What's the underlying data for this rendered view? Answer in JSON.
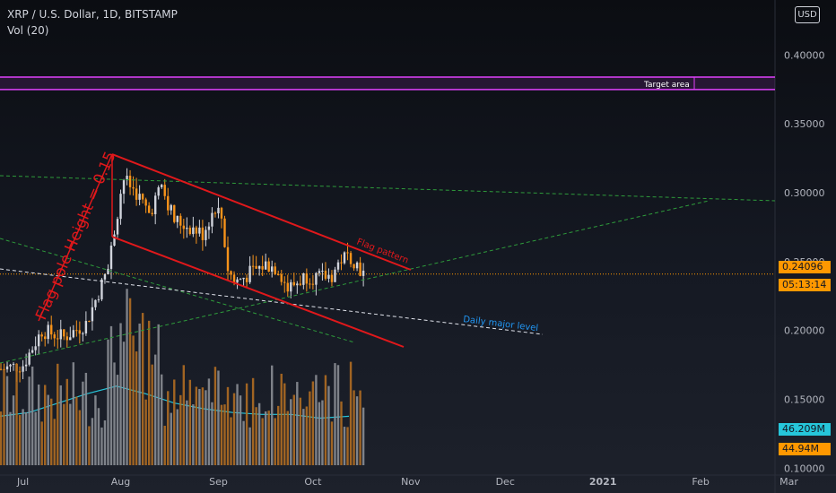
{
  "header": {
    "symbol_line": "XRP / U.S. Dollar, 1D, BITSTAMP",
    "indicator_line": "Vol (20)"
  },
  "currency_button": "USD",
  "price_axis": {
    "ticks": [
      "0.40000",
      "0.35000",
      "0.30000",
      "0.25000",
      "0.20000",
      "0.15000",
      "0.10000"
    ]
  },
  "time_axis": {
    "ticks": [
      "Jul",
      "Aug",
      "Sep",
      "Oct",
      "Nov",
      "Dec",
      "2021",
      "Feb",
      "Mar"
    ]
  },
  "badges": {
    "last_price": "0.24096",
    "countdown": "05:13:14",
    "vol_ma": "46.209M",
    "volume": "44.94M"
  },
  "annotations": {
    "target_area": "Target area",
    "flag_pattern": "Flag pattern",
    "flag_pole": "Flag pole Height = 0.15",
    "daily_level": "Daily major level"
  },
  "colors": {
    "up": "#d1d4dc",
    "down": "#f7931a",
    "vol_ma": "#26c6da",
    "flag_lines": "#e0181b",
    "target": "#e040fb",
    "trend_green": "#2e9b3b",
    "last_price_line": "#ff9800",
    "daily_level": "#2196f3"
  },
  "chart_data": {
    "type": "candlestick",
    "interval": "1D",
    "y_range": [
      0.095,
      0.425
    ],
    "last_price": 0.24096,
    "target_area": [
      0.375,
      0.384
    ],
    "keypoints": [
      {
        "date": "2020-06-24",
        "close": 0.172
      },
      {
        "date": "2020-07-01",
        "close": 0.175
      },
      {
        "date": "2020-07-07",
        "close": 0.2
      },
      {
        "date": "2020-07-14",
        "close": 0.195
      },
      {
        "date": "2020-07-21",
        "close": 0.205
      },
      {
        "date": "2020-07-28",
        "close": 0.245
      },
      {
        "date": "2020-08-01",
        "close": 0.3
      },
      {
        "date": "2020-08-02",
        "close": 0.31
      },
      {
        "date": "2020-08-06",
        "close": 0.3
      },
      {
        "date": "2020-08-10",
        "close": 0.285
      },
      {
        "date": "2020-08-14",
        "close": 0.305
      },
      {
        "date": "2020-08-18",
        "close": 0.28
      },
      {
        "date": "2020-08-23",
        "close": 0.275
      },
      {
        "date": "2020-08-27",
        "close": 0.27
      },
      {
        "date": "2020-08-31",
        "close": 0.29
      },
      {
        "date": "2020-09-02",
        "close": 0.282
      },
      {
        "date": "2020-09-04",
        "close": 0.245
      },
      {
        "date": "2020-09-06",
        "close": 0.235
      },
      {
        "date": "2020-09-10",
        "close": 0.24
      },
      {
        "date": "2020-09-16",
        "close": 0.248
      },
      {
        "date": "2020-09-20",
        "close": 0.245
      },
      {
        "date": "2020-09-23",
        "close": 0.23
      },
      {
        "date": "2020-09-26",
        "close": 0.235
      },
      {
        "date": "2020-09-29",
        "close": 0.24
      },
      {
        "date": "2020-10-03",
        "close": 0.238
      },
      {
        "date": "2020-10-07",
        "close": 0.24
      },
      {
        "date": "2020-10-10",
        "close": 0.252
      },
      {
        "date": "2020-10-13",
        "close": 0.254
      },
      {
        "date": "2020-10-15",
        "close": 0.248
      },
      {
        "date": "2020-10-17",
        "close": 0.24096
      }
    ],
    "volume_ma": [
      0.26,
      0.28,
      0.33,
      0.38,
      0.42,
      0.38,
      0.33,
      0.3,
      0.28,
      0.27,
      0.27,
      0.25,
      0.26
    ]
  }
}
